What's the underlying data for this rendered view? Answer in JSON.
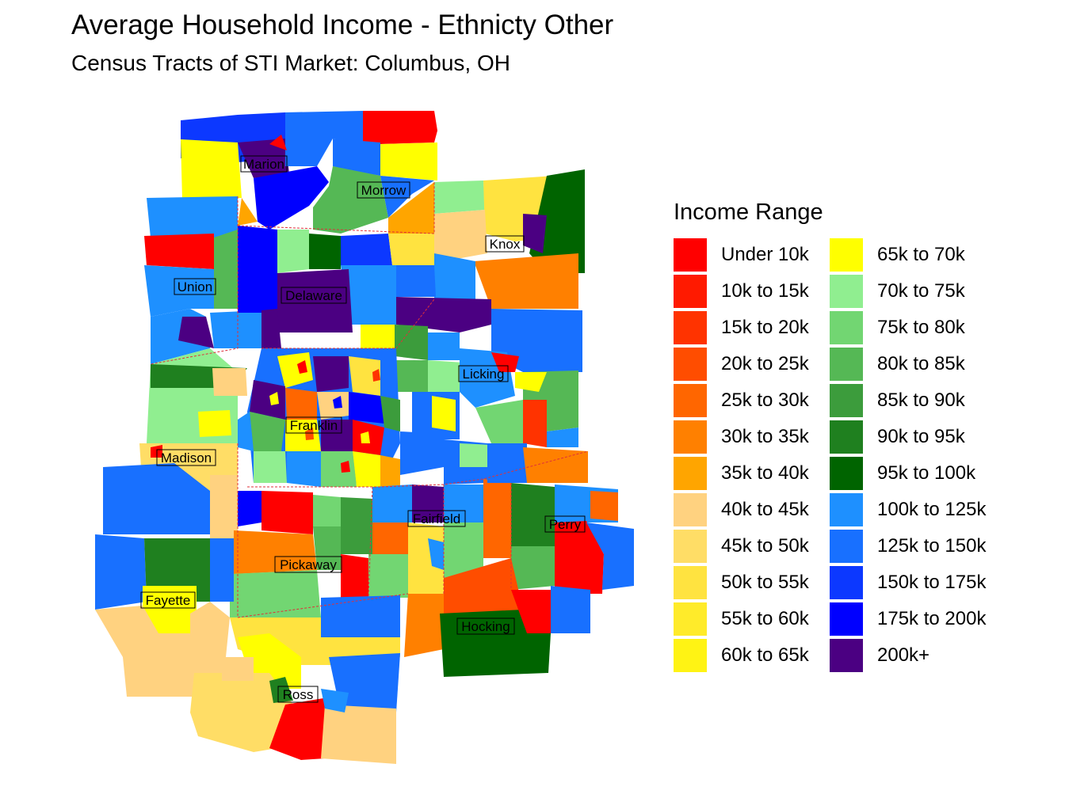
{
  "title": "Average Household Income - Ethnicty Other",
  "subtitle": "Census Tracts of STI Market: Columbus, OH",
  "legend": {
    "title": "Income Range",
    "items": [
      {
        "label": "Under 10k",
        "color": "#ff0000"
      },
      {
        "label": "10k to 15k",
        "color": "#ff1a00"
      },
      {
        "label": "15k to 20k",
        "color": "#ff3300"
      },
      {
        "label": "20k to 25k",
        "color": "#ff4d00"
      },
      {
        "label": "25k to 30k",
        "color": "#ff6600"
      },
      {
        "label": "30k to 35k",
        "color": "#ff8000"
      },
      {
        "label": "35k to 40k",
        "color": "#ffa500"
      },
      {
        "label": "40k to 45k",
        "color": "#ffd280"
      },
      {
        "label": "45k to 50k",
        "color": "#ffdd66"
      },
      {
        "label": "50k to 55k",
        "color": "#ffe340"
      },
      {
        "label": "55k to 60k",
        "color": "#ffeb2a"
      },
      {
        "label": "60k to 65k",
        "color": "#fff314"
      },
      {
        "label": "65k to 70k",
        "color": "#ffff00"
      },
      {
        "label": "70k to 75k",
        "color": "#90ee90"
      },
      {
        "label": "75k to 80k",
        "color": "#72d672"
      },
      {
        "label": "80k to 85k",
        "color": "#55b855"
      },
      {
        "label": "85k to 90k",
        "color": "#3c9c3c"
      },
      {
        "label": "90k to 95k",
        "color": "#1f801f"
      },
      {
        "label": "95k to 100k",
        "color": "#006400"
      },
      {
        "label": "100k to 125k",
        "color": "#1e90ff"
      },
      {
        "label": "125k to 150k",
        "color": "#1870ff"
      },
      {
        "label": "150k to 175k",
        "color": "#0c38ff"
      },
      {
        "label": "175k to 200k",
        "color": "#0000ff"
      },
      {
        "label": "200k+",
        "color": "#4b0082"
      }
    ]
  },
  "counties": [
    "Marion",
    "Morrow",
    "Knox",
    "Union",
    "Delaware",
    "Licking",
    "Franklin",
    "Madison",
    "Fairfield",
    "Perry",
    "Pickaway",
    "Fayette",
    "Hocking",
    "Ross"
  ]
}
